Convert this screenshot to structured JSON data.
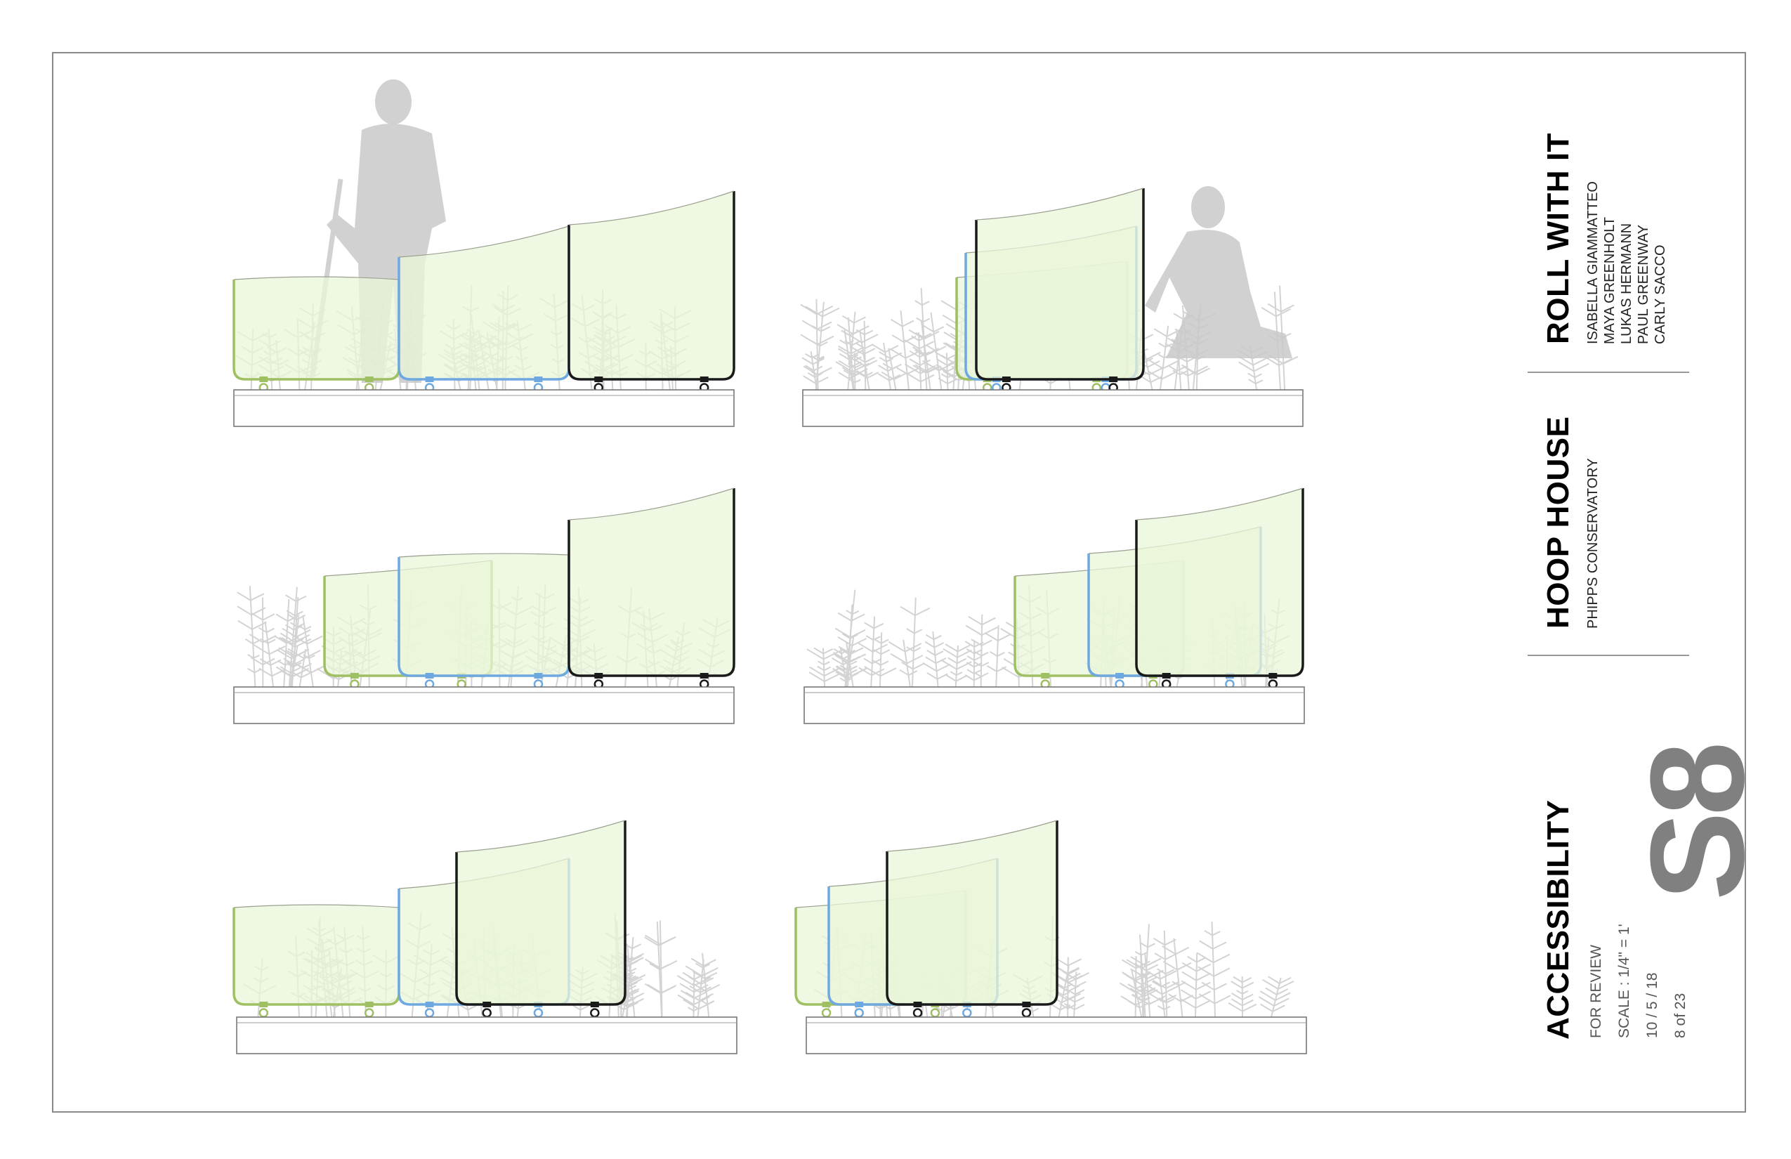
{
  "project": {
    "title": "ROLL WITH IT",
    "team": [
      "ISABELLA GIAMMATTEO",
      "MAYA GREENHOLT",
      "LUKAS HERMANN",
      "PAUL GREENWAY",
      "CARLY SACCO"
    ]
  },
  "building": {
    "title": "HOOP HOUSE",
    "site": "PHIPPS CONSERVATORY"
  },
  "sheet": {
    "title": "ACCESSIBILITY",
    "status": "FOR REVIEW",
    "scale": "SCALE : 1/4\" = 1'",
    "date": "10 / 5 / 18",
    "page": "8 of 23",
    "number": "S8"
  },
  "colors": {
    "green_frame": "#9fc062",
    "blue_frame": "#6ea8e0",
    "black_frame": "#1a1a1a",
    "glazing_fill": "#e9f5d8",
    "plant": "#cfcfcf",
    "silhouette": "#c9c9c9",
    "border": "#888888"
  }
}
